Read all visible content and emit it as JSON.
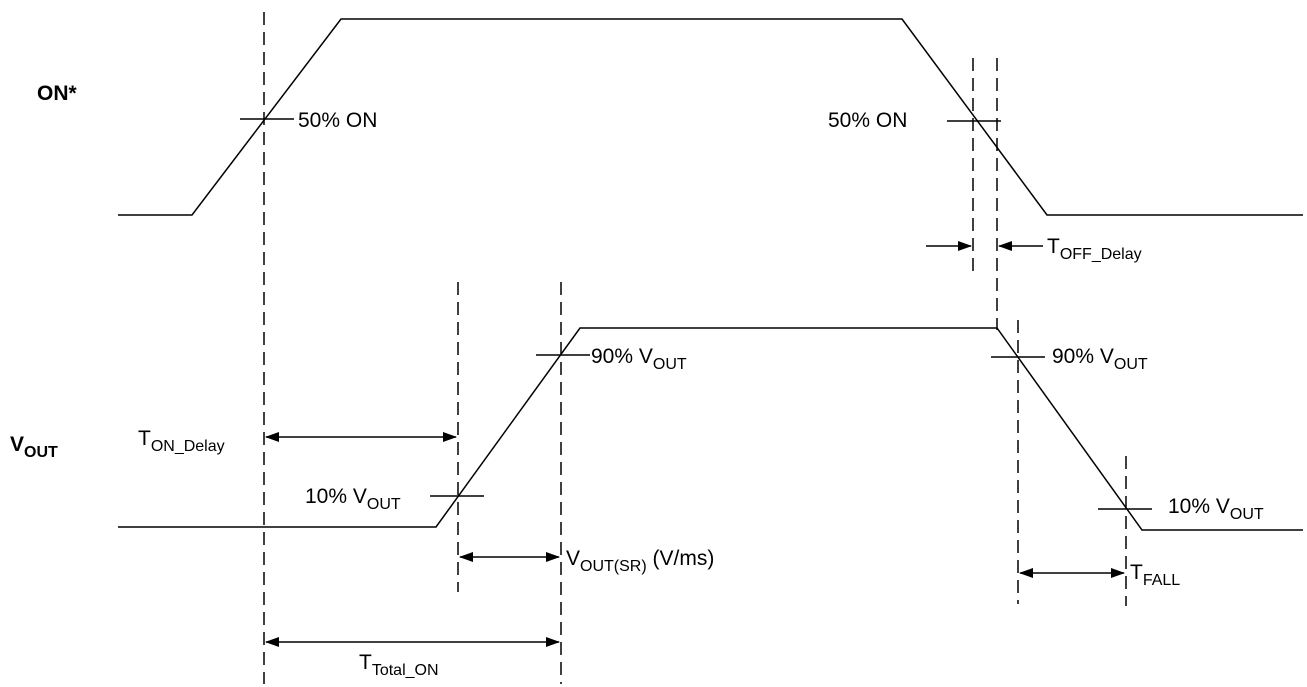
{
  "signals": {
    "on": "ON*",
    "vout_main": "V",
    "vout_sub": "OUT"
  },
  "labels": {
    "on_50_rise": "50% ON",
    "on_50_fall": "50% ON",
    "v90_rise_main": "90% V",
    "v90_rise_sub": "OUT",
    "v90_fall_main": "90% V",
    "v90_fall_sub": "OUT",
    "v10_rise_main": "10% V",
    "v10_rise_sub": "OUT",
    "v10_fall_main": "10% V",
    "v10_fall_sub": "OUT"
  },
  "timings": {
    "ton_delay_main": "T",
    "ton_delay_sub": "ON_Delay",
    "toff_delay_main": "T",
    "toff_delay_sub": "OFF_Delay",
    "slew_main": "V",
    "slew_sub": "OUT(SR)",
    "slew_units": " (V/ms)",
    "tfall_main": "T",
    "tfall_sub": "FALL",
    "ttotal_main": "T",
    "ttotal_sub": "Total_ON"
  }
}
